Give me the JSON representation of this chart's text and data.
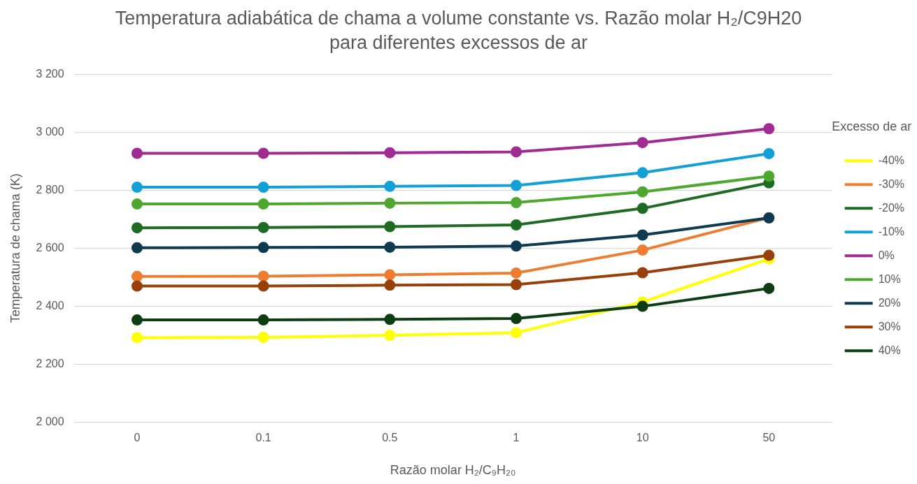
{
  "chart_data": {
    "type": "line",
    "title": "Temperatura adiabática de chama a volume constante vs. Razão molar H₂/C9H20 para diferentes excessos de ar",
    "xlabel": "Razão molar H₂/C₉H₂₀",
    "ylabel": "Temperatura de chama (K)",
    "legend_title": "Excesso de ar",
    "categories": [
      "0",
      "0.1",
      "0.5",
      "1",
      "10",
      "50"
    ],
    "ylim": [
      2000,
      3200
    ],
    "yticks": [
      {
        "value": 2000,
        "label": "2 000"
      },
      {
        "value": 2200,
        "label": "2 200"
      },
      {
        "value": 2400,
        "label": "2 400"
      },
      {
        "value": 2600,
        "label": "2 600"
      },
      {
        "value": 2800,
        "label": "2 800"
      },
      {
        "value": 3000,
        "label": "3 000"
      },
      {
        "value": 3200,
        "label": "3 200"
      }
    ],
    "grid": "y",
    "legend": "right",
    "marker": "circle",
    "line_style": "solid",
    "series": [
      {
        "name": "-40%",
        "color": "#ffff00",
        "values": [
          2291,
          2292,
          2299,
          2308,
          2414,
          2563
        ]
      },
      {
        "name": "-30%",
        "color": "#ed7d31",
        "values": [
          2502,
          2503,
          2508,
          2514,
          2593,
          2705
        ]
      },
      {
        "name": "-20%",
        "color": "#1e6b24",
        "values": [
          2670,
          2671,
          2674,
          2680,
          2737,
          2825
        ]
      },
      {
        "name": "-10%",
        "color": "#12a0d7",
        "values": [
          2810,
          2810,
          2813,
          2816,
          2860,
          2926
        ]
      },
      {
        "name": "0%",
        "color": "#a02b93",
        "values": [
          2927,
          2927,
          2929,
          2932,
          2964,
          3012
        ]
      },
      {
        "name": "10%",
        "color": "#4ea72e",
        "values": [
          2752,
          2752,
          2755,
          2757,
          2794,
          2848
        ]
      },
      {
        "name": "20%",
        "color": "#0e3a52",
        "values": [
          2601,
          2602,
          2603,
          2607,
          2645,
          2704
        ]
      },
      {
        "name": "30%",
        "color": "#974009",
        "values": [
          2469,
          2469,
          2472,
          2474,
          2515,
          2575
        ]
      },
      {
        "name": "40%",
        "color": "#0f3d13",
        "values": [
          2352,
          2352,
          2354,
          2357,
          2399,
          2461
        ]
      }
    ]
  }
}
